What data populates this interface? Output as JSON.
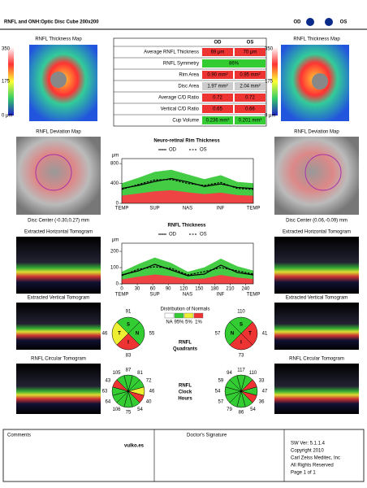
{
  "header": {
    "title": "RNFL and ONH:Optic Disc Cube 200x200",
    "eyes": [
      "OD",
      "OS"
    ]
  },
  "thickness_map": {
    "titles": [
      "RNFL Thickness Map",
      "RNFL Thickness Map"
    ],
    "scale": [
      "350",
      "175",
      "0 μm"
    ]
  },
  "table": {
    "columns": [
      "OD",
      "OS"
    ],
    "rows": [
      [
        "Average RNFL Thickness",
        "69 μm",
        "70 μm"
      ],
      [
        "RNFL Symmetry",
        "86%"
      ],
      [
        "Rim Area",
        "0.90 mm²",
        "0.95 mm²"
      ],
      [
        "Disc Area",
        "1.97 mm²",
        "2.04 mm²"
      ],
      [
        "Average C/D Ratio",
        "0.72",
        "0.72"
      ],
      [
        "Vertical C/D Ratio",
        "0.65",
        "0.66"
      ],
      [
        "Cup Volume",
        "0.236 mm³",
        "0.201 mm³"
      ]
    ]
  },
  "deviation_map": {
    "titles": [
      "RNFL Deviation Map",
      "RNFL Deviation Map"
    ],
    "disc_center": [
      "Disc Center (-0.30,0.27) mm",
      "Disc Center (0.06,-0.09) mm"
    ]
  },
  "tomograms": {
    "horizontal": [
      "Extracted Horizontal Tomogram",
      "Extracted Horizontal Tomogram"
    ],
    "vertical": [
      "Extracted Vertical Tomogram",
      "Extracted Vertical Tomogram"
    ],
    "circular": [
      "RNFL Circular Tomogram",
      "RNFL Circular Tomogram"
    ]
  },
  "rim_chart": {
    "type": "line",
    "title": "Neuro-retinal Rim Thickness",
    "y_label": "μm",
    "x": [
      0,
      32,
      64,
      96,
      128,
      160,
      192,
      224,
      255
    ],
    "xlim": [
      0,
      255
    ],
    "ylim": [
      0,
      900
    ],
    "yticks": [
      0,
      400,
      800
    ],
    "sector_labels": [
      "TEMP",
      "SUP",
      "NAS",
      "INF",
      "TEMP"
    ],
    "series": [
      {
        "name": "OD",
        "color": "#000000",
        "dash": false,
        "values": [
          300,
          360,
          440,
          500,
          430,
          340,
          390,
          320,
          300
        ]
      },
      {
        "name": "OS",
        "color": "#000000",
        "dash": true,
        "values": [
          280,
          380,
          470,
          480,
          400,
          360,
          420,
          300,
          280
        ]
      }
    ]
  },
  "rnfl_chart": {
    "type": "line",
    "title": "RNFL Thickness",
    "y_label": "μm",
    "x": [
      0,
      32,
      64,
      96,
      128,
      160,
      192,
      224,
      255
    ],
    "xlim": [
      0,
      255
    ],
    "ylim": [
      0,
      250
    ],
    "yticks": [
      0,
      100,
      200
    ],
    "xticks": [
      0,
      30,
      60,
      90,
      120,
      150,
      180,
      210,
      240
    ],
    "sector_labels": [
      "TEMP",
      "SUP",
      "NAS",
      "INF",
      "TEMP"
    ],
    "series": [
      {
        "name": "OD",
        "color": "#000000",
        "dash": false,
        "values": [
          55,
          80,
          120,
          85,
          50,
          60,
          115,
          70,
          55
        ]
      },
      {
        "name": "OS",
        "color": "#000000",
        "dash": true,
        "values": [
          50,
          90,
          105,
          95,
          55,
          75,
          100,
          80,
          60
        ]
      }
    ]
  },
  "distribution": {
    "title": "Distribution of Normals",
    "labels": [
      "NA",
      "95%",
      "5%",
      "1%"
    ],
    "colors": [
      "#ffffff",
      "#33cc33",
      "#eeee33",
      "#ee3333"
    ]
  },
  "quadrants": {
    "title": [
      "RNFL",
      "Quadrants"
    ],
    "od": {
      "letters": [
        "S",
        "N",
        "I",
        "T"
      ],
      "values": [
        91,
        55,
        83,
        46
      ],
      "colors": [
        "#33cc33",
        "#33cc33",
        "#ee3333",
        "#eeee33"
      ]
    },
    "os": {
      "letters": [
        "S",
        "T",
        "I",
        "N"
      ],
      "values": [
        110,
        41,
        73,
        57
      ],
      "colors": [
        "#33cc33",
        "#ee3333",
        "#ee3333",
        "#33cc33"
      ]
    }
  },
  "clock_hours": {
    "title": [
      "RNFL",
      "Clock",
      "Hours"
    ],
    "od": {
      "values": [
        87,
        81,
        72,
        46,
        40,
        54,
        75,
        106,
        64,
        63,
        43,
        105
      ],
      "colors": [
        "#33cc33",
        "#33cc33",
        "#33cc33",
        "#eeee33",
        "#ee3333",
        "#33cc33",
        "#33cc33",
        "#33cc33",
        "#33cc33",
        "#33cc33",
        "#ee3333",
        "#33cc33"
      ]
    },
    "os": {
      "values": [
        117,
        110,
        33,
        47,
        36,
        54,
        86,
        79,
        57,
        54,
        59,
        94
      ],
      "colors": [
        "#33cc33",
        "#33cc33",
        "#ee3333",
        "#33cc33",
        "#ee3333",
        "#33cc33",
        "#33cc33",
        "#33cc33",
        "#33cc33",
        "#33cc33",
        "#33cc33",
        "#33cc33"
      ]
    }
  },
  "footer": {
    "comments": "Comments",
    "signature": "Doctor's Signature",
    "info": [
      "SW Ver: 5.1.1.4",
      "Copyright 2010",
      "Carl Zeiss Meditec, Inc",
      "All Rights Reserved",
      "Page 1 of 1"
    ]
  },
  "watermark": "vulko.es"
}
